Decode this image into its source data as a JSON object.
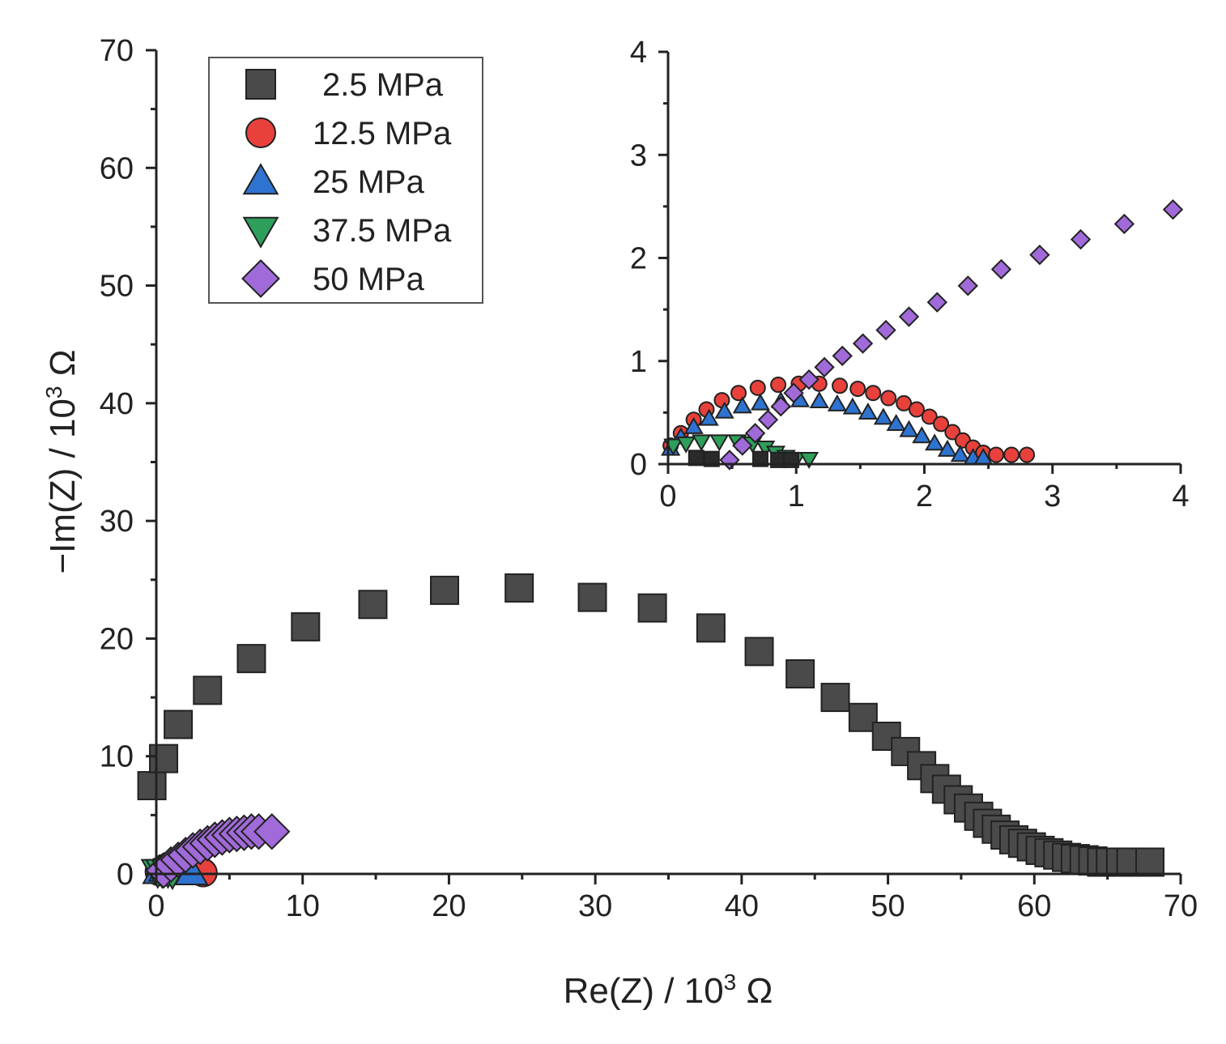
{
  "chart_data": [
    {
      "type": "scatter",
      "role": "main",
      "xlabel": "Re(Z) / 10",
      "xlabel_sup": "3",
      "xlabel_unit": " Ω",
      "ylabel": "−Im(Z) / 10",
      "ylabel_sup": "3",
      "ylabel_unit": " Ω",
      "xlim": [
        0,
        70
      ],
      "ylim": [
        0,
        70
      ],
      "xticks": [
        "0",
        "10",
        "20",
        "30",
        "40",
        "50",
        "60",
        "70"
      ],
      "yticks": [
        "0",
        "10",
        "20",
        "30",
        "40",
        "50",
        "60",
        "70"
      ],
      "grid": false,
      "legend_position": "top-left",
      "series": [
        {
          "name": "2.5 MPa",
          "marker": "square",
          "color": "#4a4a4a",
          "points": [
            [
              -0.3,
              7.5
            ],
            [
              0.5,
              9.8
            ],
            [
              1.5,
              12.7
            ],
            [
              3.5,
              15.6
            ],
            [
              6.5,
              18.3
            ],
            [
              10.2,
              21.0
            ],
            [
              14.8,
              22.9
            ],
            [
              19.7,
              24.1
            ],
            [
              24.8,
              24.3
            ],
            [
              29.8,
              23.5
            ],
            [
              33.9,
              22.6
            ],
            [
              37.9,
              20.9
            ],
            [
              41.2,
              18.9
            ],
            [
              44.0,
              17.0
            ],
            [
              46.4,
              15.0
            ],
            [
              48.3,
              13.3
            ],
            [
              49.9,
              11.7
            ],
            [
              51.2,
              10.4
            ],
            [
              52.3,
              9.2
            ],
            [
              53.2,
              8.1
            ],
            [
              54.0,
              7.2
            ],
            [
              54.8,
              6.3
            ],
            [
              55.5,
              5.6
            ],
            [
              56.2,
              4.9
            ],
            [
              56.8,
              4.3
            ],
            [
              57.4,
              3.8
            ],
            [
              58.0,
              3.3
            ],
            [
              58.6,
              2.9
            ],
            [
              59.2,
              2.6
            ],
            [
              59.8,
              2.3
            ],
            [
              60.4,
              2.0
            ],
            [
              61.0,
              1.8
            ],
            [
              61.6,
              1.6
            ],
            [
              62.2,
              1.4
            ],
            [
              62.8,
              1.3
            ],
            [
              63.4,
              1.2
            ],
            [
              64.0,
              1.1
            ],
            [
              64.6,
              1.0
            ],
            [
              65.2,
              1.0
            ],
            [
              65.9,
              1.0
            ],
            [
              66.6,
              1.0
            ],
            [
              67.9,
              1.0
            ]
          ]
        },
        {
          "name": "12.5 MPa",
          "marker": "circle",
          "color": "#e8413c",
          "points": [
            [
              0.2,
              0.2
            ],
            [
              0.6,
              0.5
            ],
            [
              1.0,
              0.7
            ],
            [
              1.5,
              0.8
            ],
            [
              2.0,
              0.7
            ],
            [
              2.5,
              0.4
            ],
            [
              3.2,
              0.1
            ]
          ]
        },
        {
          "name": "25 MPa",
          "marker": "triangle-up",
          "color": "#2f73d0",
          "points": [
            [
              0.2,
              0.2
            ],
            [
              0.6,
              0.4
            ],
            [
              1.0,
              0.6
            ],
            [
              1.5,
              0.5
            ],
            [
              2.0,
              0.3
            ],
            [
              2.4,
              0.1
            ]
          ]
        },
        {
          "name": "37.5 MPa",
          "marker": "triangle-down",
          "color": "#2e9e5b",
          "points": [
            [
              0.1,
              0.2
            ],
            [
              0.4,
              0.2
            ],
            [
              0.8,
              0.2
            ],
            [
              1.1,
              0.1
            ]
          ]
        },
        {
          "name": "50 MPa",
          "marker": "diamond",
          "color": "#a06ad8",
          "points": [
            [
              0.5,
              0.3
            ],
            [
              1.0,
              0.8
            ],
            [
              1.5,
              1.2
            ],
            [
              2.0,
              1.6
            ],
            [
              2.5,
              2.0
            ],
            [
              3.0,
              2.3
            ],
            [
              3.5,
              2.6
            ],
            [
              4.0,
              2.9
            ],
            [
              4.5,
              3.1
            ],
            [
              5.0,
              3.3
            ],
            [
              5.5,
              3.4
            ],
            [
              6.0,
              3.5
            ],
            [
              6.5,
              3.6
            ],
            [
              7.0,
              3.6
            ],
            [
              7.9,
              3.6
            ]
          ]
        }
      ]
    },
    {
      "type": "scatter",
      "role": "inset",
      "xlim": [
        0,
        4
      ],
      "ylim": [
        0,
        4
      ],
      "xticks": [
        "0",
        "1",
        "2",
        "3",
        "4"
      ],
      "yticks": [
        "0",
        "1",
        "2",
        "3",
        "4"
      ],
      "series": [
        {
          "name": "12.5 MPa",
          "marker": "circle",
          "color": "#e8413c",
          "points": [
            [
              0.02,
              0.18
            ],
            [
              0.1,
              0.3
            ],
            [
              0.2,
              0.43
            ],
            [
              0.3,
              0.53
            ],
            [
              0.42,
              0.62
            ],
            [
              0.55,
              0.69
            ],
            [
              0.7,
              0.74
            ],
            [
              0.86,
              0.77
            ],
            [
              1.02,
              0.78
            ],
            [
              1.18,
              0.78
            ],
            [
              1.34,
              0.76
            ],
            [
              1.48,
              0.73
            ],
            [
              1.6,
              0.69
            ],
            [
              1.72,
              0.64
            ],
            [
              1.84,
              0.59
            ],
            [
              1.94,
              0.53
            ],
            [
              2.04,
              0.46
            ],
            [
              2.13,
              0.39
            ],
            [
              2.22,
              0.31
            ],
            [
              2.3,
              0.23
            ],
            [
              2.38,
              0.16
            ],
            [
              2.46,
              0.11
            ],
            [
              2.56,
              0.09
            ],
            [
              2.68,
              0.09
            ],
            [
              2.8,
              0.09
            ]
          ]
        },
        {
          "name": "25 MPa",
          "marker": "triangle-up",
          "color": "#2f73d0",
          "points": [
            [
              0.02,
              0.15
            ],
            [
              0.1,
              0.26
            ],
            [
              0.2,
              0.36
            ],
            [
              0.32,
              0.44
            ],
            [
              0.44,
              0.51
            ],
            [
              0.58,
              0.56
            ],
            [
              0.72,
              0.59
            ],
            [
              0.88,
              0.61
            ],
            [
              1.03,
              0.62
            ],
            [
              1.18,
              0.61
            ],
            [
              1.32,
              0.58
            ],
            [
              1.44,
              0.55
            ],
            [
              1.56,
              0.5
            ],
            [
              1.68,
              0.45
            ],
            [
              1.78,
              0.39
            ],
            [
              1.88,
              0.33
            ],
            [
              1.98,
              0.27
            ],
            [
              2.08,
              0.2
            ],
            [
              2.18,
              0.14
            ],
            [
              2.28,
              0.09
            ],
            [
              2.38,
              0.06
            ],
            [
              2.46,
              0.06
            ]
          ]
        },
        {
          "name": "37.5 MPa",
          "marker": "triangle-down",
          "color": "#2e9e5b",
          "points": [
            [
              0.04,
              0.18
            ],
            [
              0.14,
              0.2
            ],
            [
              0.26,
              0.22
            ],
            [
              0.4,
              0.22
            ],
            [
              0.54,
              0.22
            ],
            [
              0.66,
              0.2
            ],
            [
              0.76,
              0.16
            ],
            [
              0.84,
              0.11
            ],
            [
              0.92,
              0.07
            ],
            [
              1.0,
              0.05
            ],
            [
              1.1,
              0.05
            ]
          ]
        },
        {
          "name": "2.5 MPa",
          "marker": "square",
          "color": "#2a2a2a",
          "points": [
            [
              0.22,
              0.06
            ],
            [
              0.34,
              0.05
            ],
            [
              0.72,
              0.05
            ],
            [
              0.86,
              0.04
            ],
            [
              0.96,
              0.04
            ]
          ]
        },
        {
          "name": "50 MPa",
          "marker": "diamond",
          "color": "#a06ad8",
          "points": [
            [
              0.48,
              0.04
            ],
            [
              0.58,
              0.18
            ],
            [
              0.68,
              0.3
            ],
            [
              0.78,
              0.43
            ],
            [
              0.88,
              0.56
            ],
            [
              0.98,
              0.69
            ],
            [
              1.1,
              0.82
            ],
            [
              1.22,
              0.94
            ],
            [
              1.36,
              1.05
            ],
            [
              1.52,
              1.17
            ],
            [
              1.7,
              1.3
            ],
            [
              1.88,
              1.43
            ],
            [
              2.1,
              1.57
            ],
            [
              2.34,
              1.73
            ],
            [
              2.6,
              1.89
            ],
            [
              2.9,
              2.03
            ],
            [
              3.22,
              2.18
            ],
            [
              3.56,
              2.33
            ],
            [
              3.94,
              2.47
            ]
          ]
        }
      ]
    }
  ],
  "legend": {
    "items": [
      {
        "label": "2.5 MPa",
        "marker": "square",
        "color": "#4a4a4a"
      },
      {
        "label": "12.5 MPa",
        "marker": "circle",
        "color": "#e8413c"
      },
      {
        "label": "25 MPa",
        "marker": "triangle-up",
        "color": "#2f73d0"
      },
      {
        "label": "37.5 MPa",
        "marker": "triangle-down",
        "color": "#2e9e5b"
      },
      {
        "label": "50 MPa",
        "marker": "diamond",
        "color": "#a06ad8"
      }
    ]
  }
}
